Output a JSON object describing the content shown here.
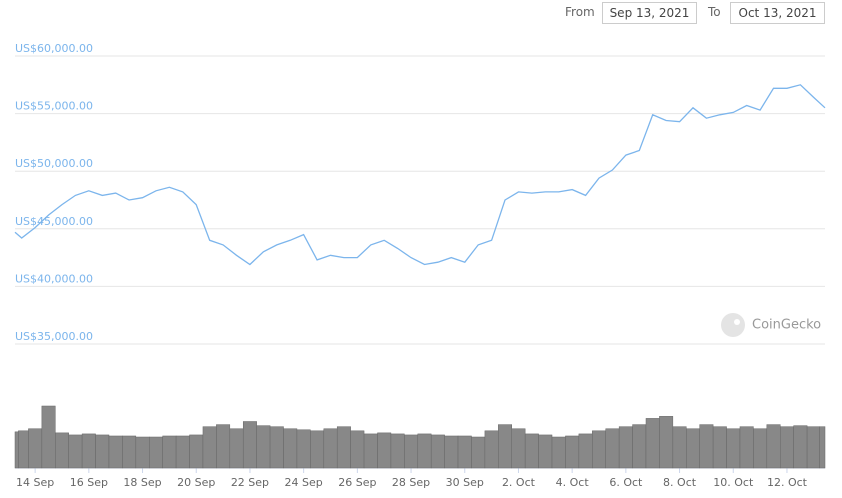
{
  "controls": {
    "from_label": "From",
    "from": "Sep 13, 2021",
    "to_label": "To",
    "to": "Oct 13, 2021"
  },
  "watermark": "CoinGecko",
  "chart_data": {
    "type": "line",
    "color": "#7cb5ec",
    "volume_color": "#888888",
    "grid": true,
    "x": [
      "2021-09-13T06:00",
      "2021-09-13T12:00",
      "2021-09-14T00:00",
      "2021-09-14T12:00",
      "2021-09-15T00:00",
      "2021-09-15T12:00",
      "2021-09-16T00:00",
      "2021-09-16T12:00",
      "2021-09-17T00:00",
      "2021-09-17T12:00",
      "2021-09-18T00:00",
      "2021-09-18T12:00",
      "2021-09-19T00:00",
      "2021-09-19T12:00",
      "2021-09-20T00:00",
      "2021-09-20T12:00",
      "2021-09-21T00:00",
      "2021-09-21T12:00",
      "2021-09-22T00:00",
      "2021-09-22T12:00",
      "2021-09-23T00:00",
      "2021-09-23T12:00",
      "2021-09-24T00:00",
      "2021-09-24T12:00",
      "2021-09-25T00:00",
      "2021-09-25T12:00",
      "2021-09-26T00:00",
      "2021-09-26T12:00",
      "2021-09-27T00:00",
      "2021-09-27T12:00",
      "2021-09-28T00:00",
      "2021-09-28T12:00",
      "2021-09-29T00:00",
      "2021-09-29T12:00",
      "2021-09-30T00:00",
      "2021-09-30T12:00",
      "2021-10-01T00:00",
      "2021-10-01T12:00",
      "2021-10-02T00:00",
      "2021-10-02T12:00",
      "2021-10-03T00:00",
      "2021-10-03T12:00",
      "2021-10-04T00:00",
      "2021-10-04T12:00",
      "2021-10-05T00:00",
      "2021-10-05T12:00",
      "2021-10-06T00:00",
      "2021-10-06T12:00",
      "2021-10-07T00:00",
      "2021-10-07T12:00",
      "2021-10-08T00:00",
      "2021-10-08T12:00",
      "2021-10-09T00:00",
      "2021-10-09T12:00",
      "2021-10-10T00:00",
      "2021-10-10T12:00",
      "2021-10-11T00:00",
      "2021-10-11T12:00",
      "2021-10-12T00:00",
      "2021-10-12T12:00",
      "2021-10-13T00:00",
      "2021-10-13T10:00"
    ],
    "values": [
      44700,
      44200,
      45100,
      46200,
      47100,
      47900,
      48300,
      47900,
      48100,
      47500,
      47700,
      48300,
      48600,
      48200,
      47100,
      44000,
      43600,
      42700,
      41900,
      43000,
      43600,
      44000,
      44500,
      42300,
      42700,
      42500,
      42500,
      43600,
      44000,
      43300,
      42500,
      41900,
      42100,
      42500,
      42100,
      43600,
      44000,
      47500,
      48200,
      48100,
      48200,
      48200,
      48400,
      47900,
      49400,
      50100,
      51400,
      51800,
      54900,
      54400,
      54300,
      55500,
      54600,
      54900,
      55100,
      55700,
      55300,
      57200,
      57200,
      57500,
      56400,
      55500
    ],
    "volume": [
      35,
      36,
      38,
      60,
      34,
      32,
      33,
      32,
      31,
      31,
      30,
      30,
      31,
      31,
      32,
      40,
      42,
      38,
      45,
      41,
      40,
      38,
      37,
      36,
      38,
      40,
      36,
      33,
      34,
      33,
      32,
      33,
      32,
      31,
      31,
      30,
      36,
      42,
      38,
      33,
      32,
      30,
      31,
      33,
      36,
      38,
      40,
      42,
      48,
      50,
      40,
      38,
      42,
      40,
      38,
      40,
      38,
      42,
      40,
      41,
      40,
      40
    ],
    "xlim": [
      "2021-09-13T06:00",
      "2021-10-13T10:00"
    ],
    "xticks": [
      {
        "value": "2021-09-14T00:00",
        "label": "14 Sep"
      },
      {
        "value": "2021-09-16T00:00",
        "label": "16 Sep"
      },
      {
        "value": "2021-09-18T00:00",
        "label": "18 Sep"
      },
      {
        "value": "2021-09-20T00:00",
        "label": "20 Sep"
      },
      {
        "value": "2021-09-22T00:00",
        "label": "22 Sep"
      },
      {
        "value": "2021-09-24T00:00",
        "label": "24 Sep"
      },
      {
        "value": "2021-09-26T00:00",
        "label": "26 Sep"
      },
      {
        "value": "2021-09-28T00:00",
        "label": "28 Sep"
      },
      {
        "value": "2021-09-30T00:00",
        "label": "30 Sep"
      },
      {
        "value": "2021-10-02T00:00",
        "label": "2. Oct"
      },
      {
        "value": "2021-10-04T00:00",
        "label": "4. Oct"
      },
      {
        "value": "2021-10-06T00:00",
        "label": "6. Oct"
      },
      {
        "value": "2021-10-08T00:00",
        "label": "8. Oct"
      },
      {
        "value": "2021-10-10T00:00",
        "label": "10. Oct"
      },
      {
        "value": "2021-10-12T00:00",
        "label": "12. Oct"
      }
    ],
    "ylim": [
      35000,
      60000
    ],
    "yticks": [
      {
        "value": 35000,
        "label": "US$35,000.00"
      },
      {
        "value": 40000,
        "label": "US$40,000.00"
      },
      {
        "value": 45000,
        "label": "US$45,000.00"
      },
      {
        "value": 50000,
        "label": "US$50,000.00"
      },
      {
        "value": 55000,
        "label": "US$55,000.00"
      },
      {
        "value": 60000,
        "label": "US$60,000.00"
      }
    ]
  }
}
